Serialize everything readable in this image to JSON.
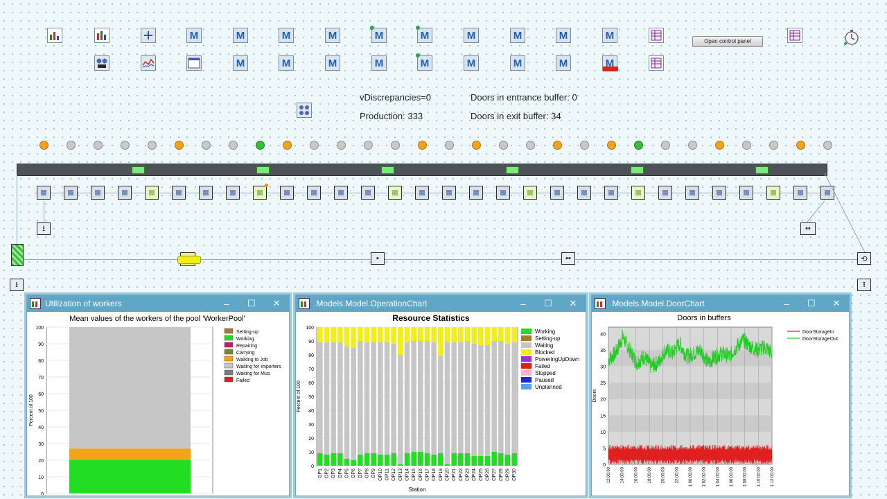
{
  "toolbar": {
    "open_control_panel_label": "Open control panel",
    "m_glyph": "M"
  },
  "stats": {
    "discrepancies": "vDiscrepancies=0",
    "production": "Production: 333",
    "entrance_buffer": "Doors in entrance buffer: 0",
    "exit_buffer": "Doors in exit buffer: 34"
  },
  "window_utilization": {
    "title": "Utilization of workers",
    "chart_title": "Mean values of the workers of the pool 'WorkerPool'"
  },
  "window_operation": {
    "title": ".Models.Model.OperationChart",
    "chart_title": "Resource Statistics"
  },
  "window_door": {
    "title": ".Models.Model.DoorChart",
    "chart_title": "Doors in buffers"
  },
  "window_controls": {
    "minimize": "–",
    "maximize": "☐",
    "close": "✕"
  },
  "chart_data": [
    {
      "type": "bar",
      "title": "Mean values of the workers of the pool 'WorkerPool'",
      "xlabel": "",
      "ylabel": "Percent of 100",
      "ylim": [
        0,
        100
      ],
      "yticks": [
        "0",
        "10",
        "20",
        "30",
        "40",
        "50",
        "60",
        "70",
        "80",
        "90",
        "100"
      ],
      "categories": [
        "WorkerPool"
      ],
      "series": [
        {
          "name": "Setting-up",
          "color": "#a07a38",
          "values": [
            0
          ]
        },
        {
          "name": "Working",
          "color": "#22dd22",
          "values": [
            20
          ]
        },
        {
          "name": "Repairing",
          "color": "#b8206a",
          "values": [
            0
          ]
        },
        {
          "name": "Carrying",
          "color": "#7a8a2a",
          "values": [
            0
          ]
        },
        {
          "name": "Walking to Job",
          "color": "#f4a21a",
          "values": [
            7
          ]
        },
        {
          "name": "Waiting for Importers",
          "color": "#c6c6c6",
          "values": [
            73
          ]
        },
        {
          "name": "Waiting for Mus",
          "color": "#7a7a7a",
          "values": [
            0
          ]
        },
        {
          "name": "Failed",
          "color": "#d82020",
          "values": [
            0
          ]
        }
      ]
    },
    {
      "type": "bar",
      "title": "Resource Statistics",
      "xlabel": "Station",
      "ylabel": "Percent of 100",
      "ylim": [
        0,
        100
      ],
      "yticks": [
        "0",
        "10",
        "20",
        "30",
        "40",
        "50",
        "60",
        "70",
        "80",
        "90",
        "100"
      ],
      "categories": [
        "OP1",
        "OP2",
        "OP3",
        "OP4",
        "OP5",
        "OP6",
        "OP7",
        "OP8",
        "OP9",
        "OP10",
        "OP11",
        "OP12",
        "OP13",
        "OP14",
        "OP15",
        "OP16",
        "OP17",
        "OP18",
        "OP19",
        "OP20",
        "OP21",
        "OP22",
        "OP23",
        "OP24",
        "OP25",
        "OP26",
        "OP27",
        "OP28",
        "OP29",
        "OP30"
      ],
      "series": [
        {
          "name": "Working",
          "color": "#22dd22",
          "values": [
            9,
            8,
            9,
            9,
            5,
            4,
            8,
            9,
            9,
            8,
            8,
            9,
            1,
            9,
            10,
            10,
            9,
            8,
            9,
            1,
            9,
            9,
            9,
            7,
            7,
            7,
            10,
            9,
            8,
            9
          ]
        },
        {
          "name": "Setting-up",
          "color": "#a07a38",
          "values": [
            0,
            0,
            0,
            0,
            0,
            0,
            0,
            0,
            0,
            0,
            0,
            0,
            0,
            0,
            0,
            0,
            0,
            0,
            0,
            0,
            0,
            0,
            0,
            0,
            0,
            0,
            0,
            0,
            0,
            0
          ]
        },
        {
          "name": "Waiting",
          "color": "#c6c6c6",
          "values": [
            80,
            81,
            80,
            80,
            81,
            81,
            82,
            80,
            80,
            81,
            81,
            79,
            79,
            80,
            80,
            80,
            81,
            81,
            70,
            88,
            80,
            80,
            81,
            81,
            80,
            80,
            80,
            81,
            80,
            80
          ]
        },
        {
          "name": "Blocked",
          "color": "#f2ee1c",
          "values": [
            11,
            11,
            11,
            11,
            14,
            15,
            10,
            11,
            11,
            11,
            11,
            12,
            20,
            11,
            10,
            10,
            10,
            11,
            21,
            11,
            11,
            11,
            10,
            12,
            13,
            13,
            10,
            10,
            12,
            11
          ]
        },
        {
          "name": "PoweringUpDown",
          "color": "#a030d8",
          "values": [
            0,
            0,
            0,
            0,
            0,
            0,
            0,
            0,
            0,
            0,
            0,
            0,
            0,
            0,
            0,
            0,
            0,
            0,
            0,
            0,
            0,
            0,
            0,
            0,
            0,
            0,
            0,
            0,
            0,
            0
          ]
        },
        {
          "name": "Failed",
          "color": "#e02020",
          "values": [
            0,
            0,
            0,
            0,
            0,
            0,
            0,
            0,
            0,
            0,
            0,
            0,
            0,
            0,
            0,
            0,
            0,
            0,
            0,
            0,
            0,
            0,
            0,
            0,
            0,
            0,
            0,
            0,
            0,
            0
          ]
        },
        {
          "name": "Stopped",
          "color": "#f4b8c8",
          "values": [
            0,
            0,
            0,
            0,
            0,
            0,
            0,
            0,
            0,
            0,
            0,
            0,
            0,
            0,
            0,
            0,
            0,
            0,
            0,
            0,
            0,
            0,
            0,
            0,
            0,
            0,
            0,
            0,
            0,
            0
          ]
        },
        {
          "name": "Paused",
          "color": "#1a2acc",
          "values": [
            0,
            0,
            0,
            0,
            0,
            0,
            0,
            0,
            0,
            0,
            0,
            0,
            0,
            0,
            0,
            0,
            0,
            0,
            0,
            0,
            0,
            0,
            0,
            0,
            0,
            0,
            0,
            0,
            0,
            0
          ]
        },
        {
          "name": "Unplanned",
          "color": "#5aa0e8",
          "values": [
            0,
            0,
            0,
            0,
            0,
            0,
            0,
            0,
            0,
            0,
            0,
            0,
            0,
            0,
            0,
            0,
            0,
            0,
            0,
            0,
            0,
            0,
            0,
            0,
            0,
            0,
            0,
            0,
            0,
            0
          ]
        }
      ]
    },
    {
      "type": "line",
      "title": "Doors in buffers",
      "xlabel": "Time",
      "ylabel": "Doors",
      "ylim": [
        0,
        42
      ],
      "yticks": [
        "0",
        "5",
        "10",
        "15",
        "20",
        "25",
        "30",
        "35",
        "40"
      ],
      "xticks": [
        "12:00:00",
        "14:00:00",
        "16:00:00",
        "18:00:00",
        "20:00:00",
        "22:00:00",
        "1:00:00:00",
        "1:02:00:00",
        "1:04:00:00",
        "1:06:00:00",
        "1:08:00:00",
        "1:10:00:00",
        "1:12:00:00"
      ],
      "x_range_hours": [
        12,
        35
      ],
      "series": [
        {
          "name": "DoorStorageIn",
          "color": "#e02020",
          "range": [
            0,
            6
          ],
          "mean": 3
        },
        {
          "name": "DoorStorageOut",
          "color": "#22cc22",
          "x_hours": [
            12,
            13,
            14,
            15,
            16,
            17,
            18,
            19,
            20,
            21,
            22,
            23,
            24,
            25,
            26,
            27,
            28,
            29,
            30,
            31,
            32,
            33,
            34,
            35
          ],
          "values": [
            32,
            34,
            39,
            35,
            31,
            33,
            30,
            31,
            35,
            34,
            37,
            33,
            34,
            35,
            31,
            33,
            34,
            33,
            36,
            38,
            36,
            35,
            36,
            34
          ]
        }
      ]
    }
  ]
}
